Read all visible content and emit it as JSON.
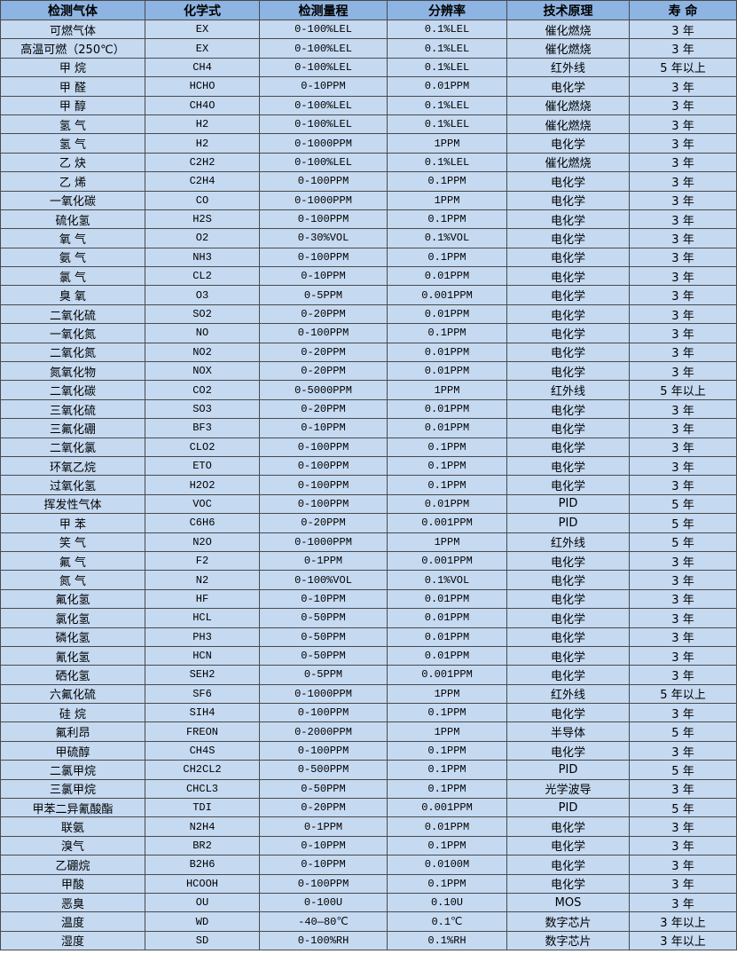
{
  "headers": [
    "检测气体",
    "化学式",
    "检测量程",
    "分辨率",
    "技术原理",
    "寿 命"
  ],
  "rows": [
    [
      "可燃气体",
      "EX",
      "0-100%LEL",
      "0.1%LEL",
      "催化燃烧",
      "3 年"
    ],
    [
      "高温可燃（250℃）",
      "EX",
      "0-100%LEL",
      "0.1%LEL",
      "催化燃烧",
      "3 年"
    ],
    [
      "甲 烷",
      "CH4",
      "0-100%LEL",
      "0.1%LEL",
      "红外线",
      "5 年以上"
    ],
    [
      "甲 醛",
      "HCHO",
      "0-10PPM",
      "0.01PPM",
      "电化学",
      "3 年"
    ],
    [
      "甲 醇",
      "CH4O",
      "0-100%LEL",
      "0.1%LEL",
      "催化燃烧",
      "3 年"
    ],
    [
      "氢 气",
      "H2",
      "0-100%LEL",
      "0.1%LEL",
      "催化燃烧",
      "3 年"
    ],
    [
      "氢 气",
      "H2",
      "0-1000PPM",
      "1PPM",
      "电化学",
      "3 年"
    ],
    [
      "乙 炔",
      "C2H2",
      "0-100%LEL",
      "0.1%LEL",
      "催化燃烧",
      "3 年"
    ],
    [
      "乙 烯",
      "C2H4",
      "0-100PPM",
      "0.1PPM",
      "电化学",
      "3 年"
    ],
    [
      "一氧化碳",
      "CO",
      "0-1000PPM",
      "1PPM",
      "电化学",
      "3 年"
    ],
    [
      "硫化氢",
      "H2S",
      "0-100PPM",
      "0.1PPM",
      "电化学",
      "3 年"
    ],
    [
      "氧 气",
      "O2",
      "0-30%VOL",
      "0.1%VOL",
      "电化学",
      "3 年"
    ],
    [
      "氨 气",
      "NH3",
      "0-100PPM",
      "0.1PPM",
      "电化学",
      "3 年"
    ],
    [
      "氯 气",
      "CL2",
      "0-10PPM",
      "0.01PPM",
      "电化学",
      "3 年"
    ],
    [
      "臭 氧",
      "O3",
      "0-5PPM",
      "0.001PPM",
      "电化学",
      "3 年"
    ],
    [
      "二氧化硫",
      "SO2",
      "0-20PPM",
      "0.01PPM",
      "电化学",
      "3 年"
    ],
    [
      "一氧化氮",
      "NO",
      "0-100PPM",
      "0.1PPM",
      "电化学",
      "3 年"
    ],
    [
      "二氧化氮",
      "NO2",
      "0-20PPM",
      "0.01PPM",
      "电化学",
      "3 年"
    ],
    [
      "氮氧化物",
      "NOX",
      "0-20PPM",
      "0.01PPM",
      "电化学",
      "3 年"
    ],
    [
      "二氧化碳",
      "CO2",
      "0-5000PPM",
      "1PPM",
      "红外线",
      "5 年以上"
    ],
    [
      "三氧化硫",
      "SO3",
      "0-20PPM",
      "0.01PPM",
      "电化学",
      "3 年"
    ],
    [
      "三氟化硼",
      "BF3",
      "0-10PPM",
      "0.01PPM",
      "电化学",
      "3 年"
    ],
    [
      "二氧化氯",
      "CLO2",
      "0-100PPM",
      "0.1PPM",
      "电化学",
      "3 年"
    ],
    [
      "环氧乙烷",
      "ETO",
      "0-100PPM",
      "0.1PPM",
      "电化学",
      "3 年"
    ],
    [
      "过氧化氢",
      "H2O2",
      "0-100PPM",
      "0.1PPM",
      "电化学",
      "3 年"
    ],
    [
      "挥发性气体",
      "VOC",
      "0-100PPM",
      "0.01PPM",
      "PID",
      "5 年"
    ],
    [
      "甲 苯",
      "C6H6",
      "0-20PPM",
      "0.001PPM",
      "PID",
      "5 年"
    ],
    [
      "笑 气",
      "N2O",
      "0-1000PPM",
      "1PPM",
      "红外线",
      "5 年"
    ],
    [
      "氟 气",
      "F2",
      "0-1PPM",
      "0.001PPM",
      "电化学",
      "3 年"
    ],
    [
      "氮 气",
      "N2",
      "0-100%VOL",
      "0.1%VOL",
      "电化学",
      "3 年"
    ],
    [
      "氟化氢",
      "HF",
      "0-10PPM",
      "0.01PPM",
      "电化学",
      "3 年"
    ],
    [
      "氯化氢",
      "HCL",
      "0-50PPM",
      "0.01PPM",
      "电化学",
      "3 年"
    ],
    [
      "磷化氢",
      "PH3",
      "0-50PPM",
      "0.01PPM",
      "电化学",
      "3 年"
    ],
    [
      "氰化氢",
      "HCN",
      "0-50PPM",
      "0.01PPM",
      "电化学",
      "3 年"
    ],
    [
      "硒化氢",
      "SEH2",
      "0-5PPM",
      "0.001PPM",
      "电化学",
      "3 年"
    ],
    [
      "六氟化硫",
      "SF6",
      "0-1000PPM",
      "1PPM",
      "红外线",
      "5 年以上"
    ],
    [
      "硅 烷",
      "SIH4",
      "0-100PPM",
      "0.1PPM",
      "电化学",
      "3 年"
    ],
    [
      "氟利昂",
      "FREON",
      "0-2000PPM",
      "1PPM",
      "半导体",
      "5 年"
    ],
    [
      "甲硫醇",
      "CH4S",
      "0-100PPM",
      "0.1PPM",
      "电化学",
      "3 年"
    ],
    [
      "二氯甲烷",
      "CH2CL2",
      "0-500PPM",
      "0.1PPM",
      "PID",
      "5 年"
    ],
    [
      "三氯甲烷",
      "CHCL3",
      "0-50PPM",
      "0.1PPM",
      "光学波导",
      "3 年"
    ],
    [
      "甲苯二异氰酸酯",
      "TDI",
      "0-20PPM",
      "0.001PPM",
      "PID",
      "5 年"
    ],
    [
      "联氨",
      "N2H4",
      "0-1PPM",
      "0.01PPM",
      "电化学",
      "3 年"
    ],
    [
      "溴气",
      "BR2",
      "0-10PPM",
      "0.1PPM",
      "电化学",
      "3 年"
    ],
    [
      "乙硼烷",
      "B2H6",
      "0-10PPM",
      "0.0100M",
      "电化学",
      "3 年"
    ],
    [
      "甲酸",
      "HCOOH",
      "0-100PPM",
      "0.1PPM",
      "电化学",
      "3 年"
    ],
    [
      "恶臭",
      "OU",
      "0-100U",
      "0.10U",
      "MOS",
      "3 年"
    ],
    [
      "温度",
      "WD",
      "-40—80℃",
      "0.1℃",
      "数字芯片",
      "3 年以上"
    ],
    [
      "湿度",
      "SD",
      "0-100%RH",
      "0.1%RH",
      "数字芯片",
      "3 年以上"
    ]
  ],
  "colors": {
    "header_bg": "#8db4e2",
    "row_bg": "#c5d9f1",
    "border": "#4a4a4a"
  }
}
